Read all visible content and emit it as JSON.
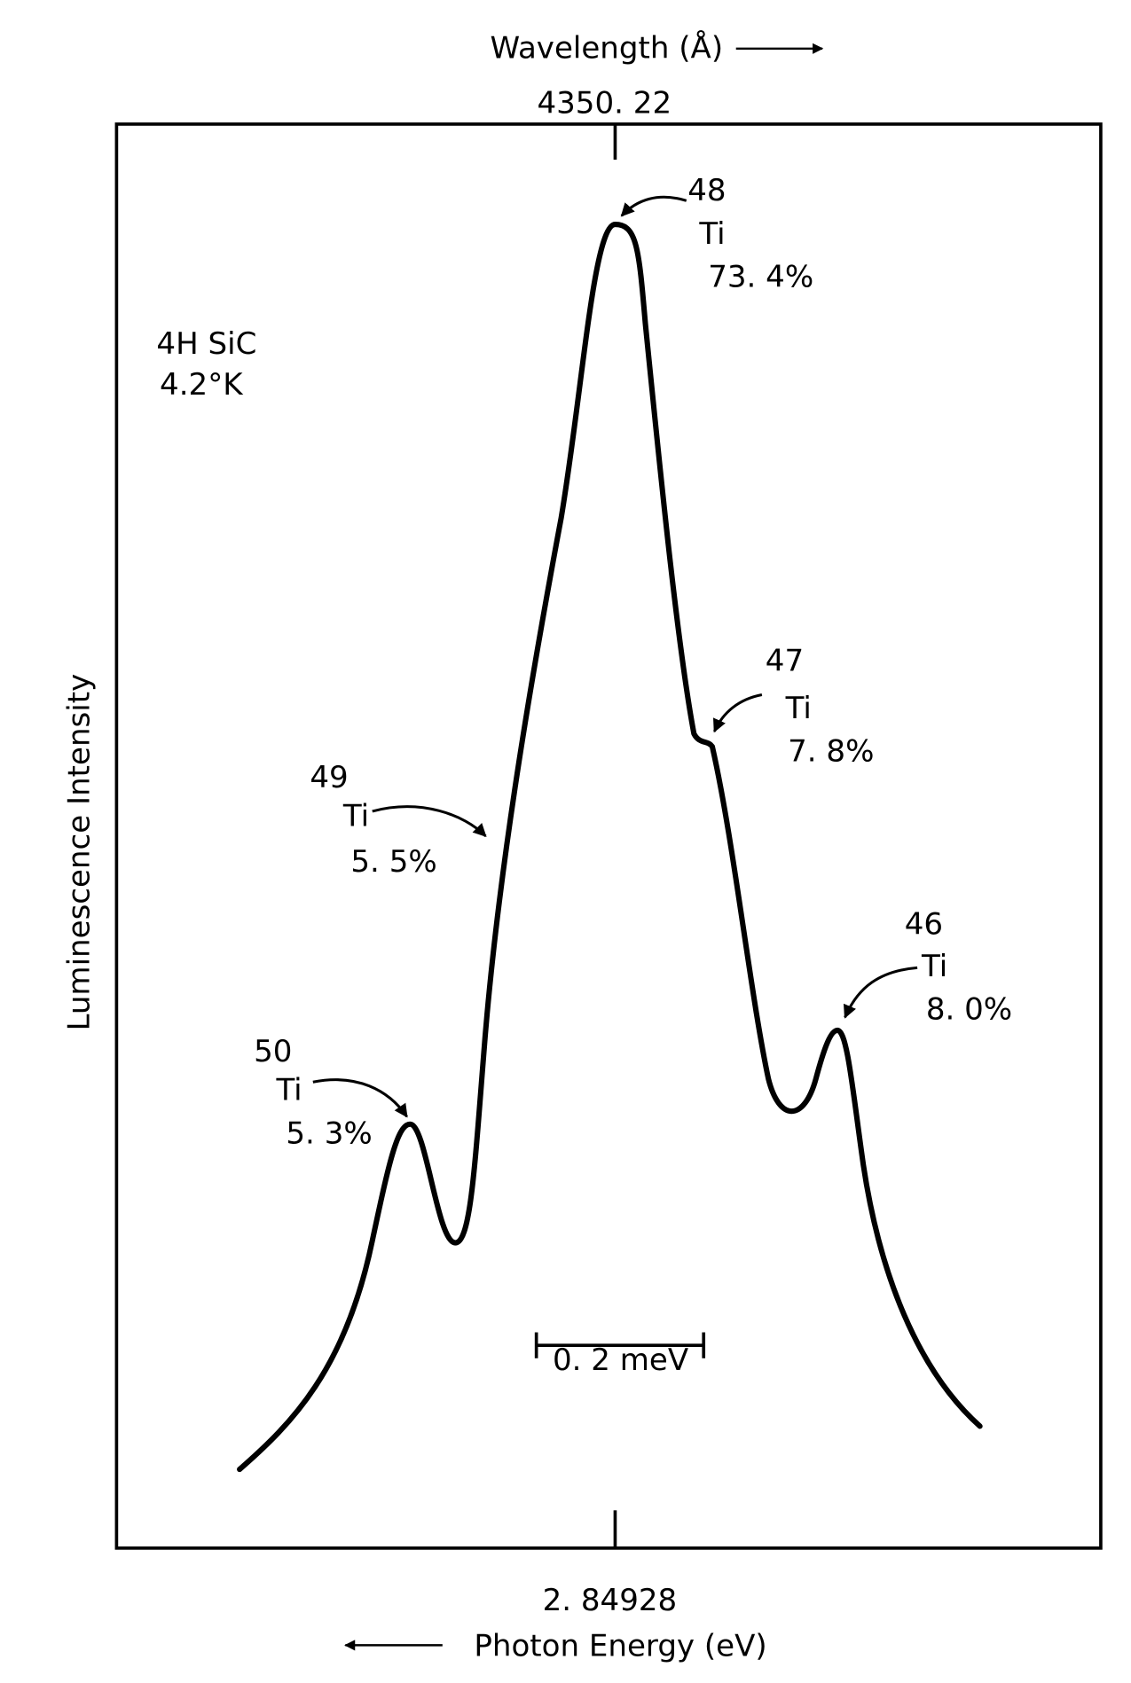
{
  "chart_data": {
    "type": "spectrum",
    "x_label": "Photon Energy (eV)",
    "x2_label": "Wavelength (Å)",
    "y_label": "Luminescence Intensity",
    "center_energy": "2. 84928",
    "center_wavelength": "4350. 22",
    "sample": "4H SiC",
    "temperature": "4.2°K",
    "scale_bar": "0. 2 meV",
    "annotations": [
      {
        "mass": "50",
        "element": "Ti",
        "abundance": "5. 3%"
      },
      {
        "mass": "49",
        "element": "Ti",
        "abundance": "5. 5%"
      },
      {
        "mass": "48",
        "element": "Ti",
        "abundance": "73. 4%"
      },
      {
        "mass": "47",
        "element": "Ti",
        "abundance": "7. 8%"
      },
      {
        "mass": "46",
        "element": "Ti",
        "abundance": "8. 0%"
      }
    ]
  }
}
